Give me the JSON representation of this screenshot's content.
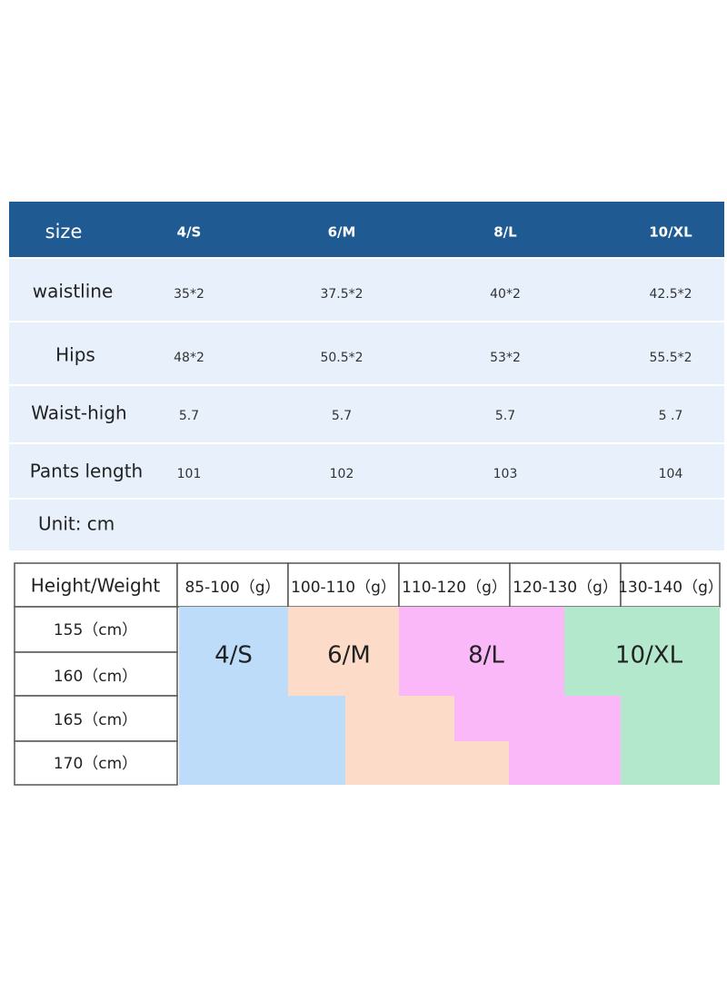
{
  "size_table": {
    "header": [
      "size",
      "4/S",
      "6/M",
      "8/L",
      "10/XL"
    ],
    "rows": [
      [
        "waistline",
        "35*2",
        "37.5*2",
        "40*2",
        "42.5*2"
      ],
      [
        "Hips",
        "48*2",
        "50.5*2",
        "53*2",
        "55.5*2"
      ],
      [
        "Waist-high",
        "5.7",
        "5.7",
        "5.7",
        "5 .7"
      ],
      [
        "Pants length",
        "101",
        "102",
        "103",
        "104"
      ]
    ],
    "unit": "Unit: cm"
  },
  "fit_table": {
    "corner": "Height/Weight",
    "weights": [
      "85-100（g）",
      "100-110（g）",
      "110-120（g）",
      "120-130（g）",
      "130-140（g）"
    ],
    "heights": [
      "155（cm）",
      "160（cm）",
      "165（cm）",
      "170（cm）"
    ],
    "sizes": [
      "4/S",
      "6/M",
      "8/L",
      "10/XL"
    ]
  }
}
